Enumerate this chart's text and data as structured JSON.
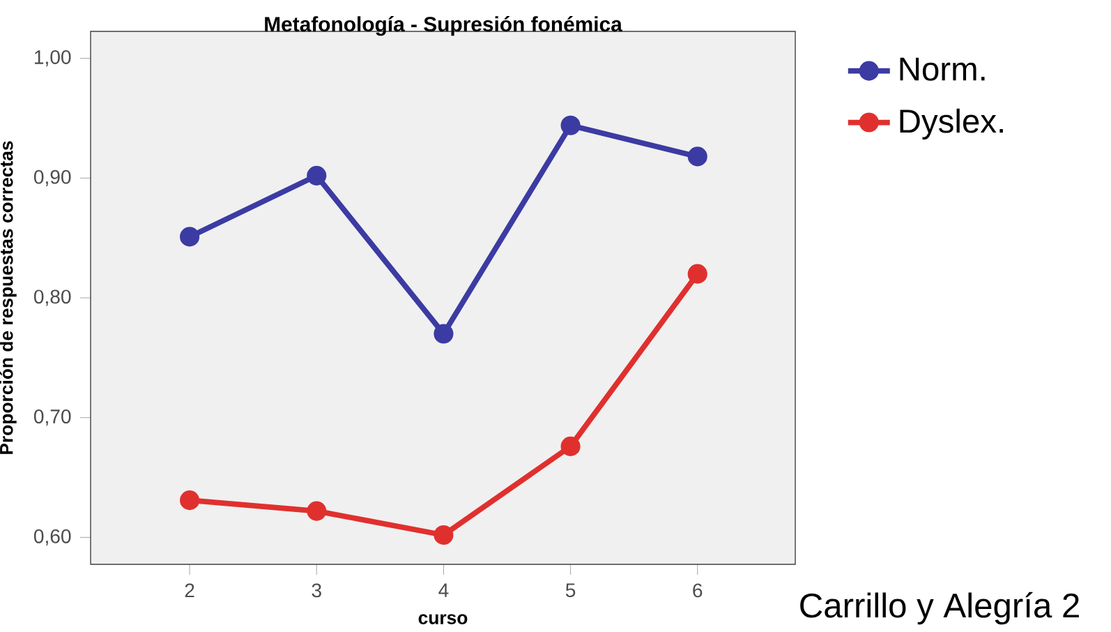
{
  "chart_data": {
    "type": "line",
    "title": "Metafonología - Supresión fonémica",
    "xlabel": "curso",
    "ylabel": "Proporción de respuestas correctas",
    "x": [
      2,
      3,
      4,
      5,
      6
    ],
    "series": [
      {
        "name": "Norm.",
        "color": "#3b3ba3",
        "values": [
          0.851,
          0.902,
          0.77,
          0.944,
          0.918
        ]
      },
      {
        "name": "Dyslex.",
        "color": "#e0302e",
        "values": [
          0.631,
          0.622,
          0.602,
          0.676,
          0.82
        ]
      }
    ],
    "xlim": [
      1.22,
      6.77
    ],
    "ylim": [
      0.5775,
      1.0225
    ],
    "xticks": [
      2,
      3,
      4,
      5,
      6
    ],
    "yticks": [
      {
        "value": 0.6,
        "label": "0,60"
      },
      {
        "value": 0.7,
        "label": "0,70"
      },
      {
        "value": 0.8,
        "label": "0,80"
      },
      {
        "value": 0.9,
        "label": "0,90"
      },
      {
        "value": 1.0,
        "label": "1,00"
      }
    ],
    "marker": "circle",
    "line_style": "solid",
    "legend": "top right",
    "annotations": [
      "Carrillo y Alegría 2"
    ]
  }
}
